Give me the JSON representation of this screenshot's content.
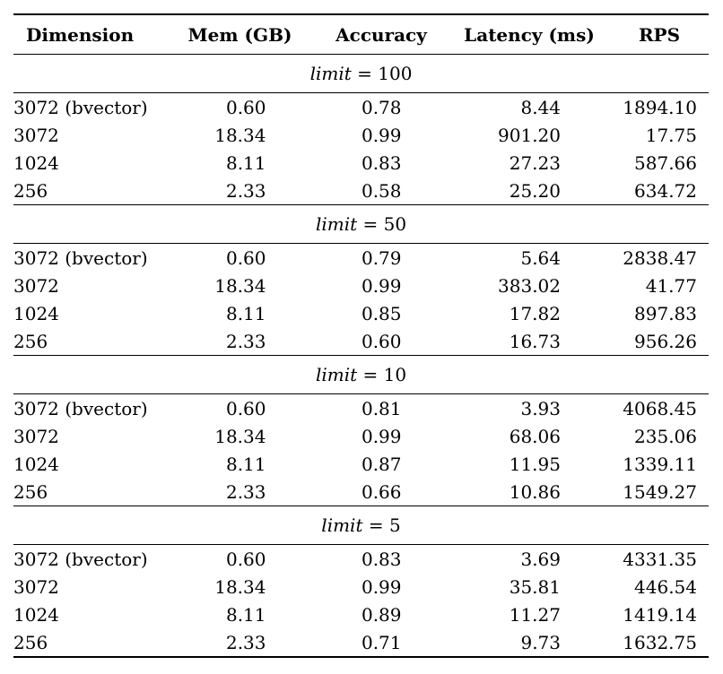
{
  "colors": {
    "background": "#ffffff",
    "text": "#000000",
    "rule": "#000000"
  },
  "table": {
    "headers": [
      "Dimension",
      "Mem (GB)",
      "Accuracy",
      "Latency (ms)",
      "RPS"
    ],
    "sections": [
      {
        "title_var": "limit",
        "title_eq": "=",
        "title_val": "100",
        "rows": [
          {
            "dimension": "3072 (bvector)",
            "mem_gb": "0.60",
            "accuracy": "0.78",
            "latency_ms": "8.44",
            "rps": "1894.10"
          },
          {
            "dimension": "3072",
            "mem_gb": "18.34",
            "accuracy": "0.99",
            "latency_ms": "901.20",
            "rps": "17.75"
          },
          {
            "dimension": "1024",
            "mem_gb": "8.11",
            "accuracy": "0.83",
            "latency_ms": "27.23",
            "rps": "587.66"
          },
          {
            "dimension": "256",
            "mem_gb": "2.33",
            "accuracy": "0.58",
            "latency_ms": "25.20",
            "rps": "634.72"
          }
        ]
      },
      {
        "title_var": "limit",
        "title_eq": "=",
        "title_val": "50",
        "rows": [
          {
            "dimension": "3072 (bvector)",
            "mem_gb": "0.60",
            "accuracy": "0.79",
            "latency_ms": "5.64",
            "rps": "2838.47"
          },
          {
            "dimension": "3072",
            "mem_gb": "18.34",
            "accuracy": "0.99",
            "latency_ms": "383.02",
            "rps": "41.77"
          },
          {
            "dimension": "1024",
            "mem_gb": "8.11",
            "accuracy": "0.85",
            "latency_ms": "17.82",
            "rps": "897.83"
          },
          {
            "dimension": "256",
            "mem_gb": "2.33",
            "accuracy": "0.60",
            "latency_ms": "16.73",
            "rps": "956.26"
          }
        ]
      },
      {
        "title_var": "limit",
        "title_eq": "=",
        "title_val": "10",
        "rows": [
          {
            "dimension": "3072 (bvector)",
            "mem_gb": "0.60",
            "accuracy": "0.81",
            "latency_ms": "3.93",
            "rps": "4068.45"
          },
          {
            "dimension": "3072",
            "mem_gb": "18.34",
            "accuracy": "0.99",
            "latency_ms": "68.06",
            "rps": "235.06"
          },
          {
            "dimension": "1024",
            "mem_gb": "8.11",
            "accuracy": "0.87",
            "latency_ms": "11.95",
            "rps": "1339.11"
          },
          {
            "dimension": "256",
            "mem_gb": "2.33",
            "accuracy": "0.66",
            "latency_ms": "10.86",
            "rps": "1549.27"
          }
        ]
      },
      {
        "title_var": "limit",
        "title_eq": "=",
        "title_val": "5",
        "rows": [
          {
            "dimension": "3072 (bvector)",
            "mem_gb": "0.60",
            "accuracy": "0.83",
            "latency_ms": "3.69",
            "rps": "4331.35"
          },
          {
            "dimension": "3072",
            "mem_gb": "18.34",
            "accuracy": "0.99",
            "latency_ms": "35.81",
            "rps": "446.54"
          },
          {
            "dimension": "1024",
            "mem_gb": "8.11",
            "accuracy": "0.89",
            "latency_ms": "11.27",
            "rps": "1419.14"
          },
          {
            "dimension": "256",
            "mem_gb": "2.33",
            "accuracy": "0.71",
            "latency_ms": "9.73",
            "rps": "1632.75"
          }
        ]
      }
    ]
  }
}
